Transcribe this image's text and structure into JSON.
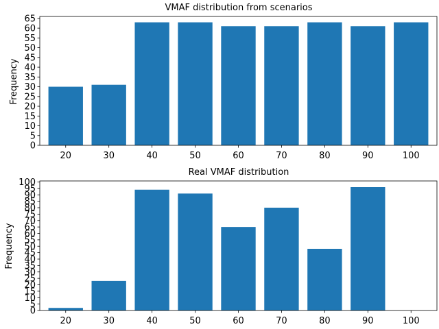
{
  "chart_data": [
    {
      "type": "bar",
      "title": "VMAF distribution from scenarios",
      "xlabel": "",
      "ylabel": "Frequency",
      "categories": [
        "20",
        "30",
        "40",
        "50",
        "60",
        "70",
        "80",
        "90",
        "100"
      ],
      "values": [
        30,
        31,
        63,
        63,
        61,
        61,
        63,
        61,
        63
      ],
      "ylim": [
        0,
        66
      ],
      "yticks": [
        0,
        5,
        10,
        15,
        20,
        25,
        30,
        35,
        40,
        45,
        50,
        55,
        60,
        65
      ],
      "grid": false,
      "bar_color": "#1f77b4"
    },
    {
      "type": "bar",
      "title": "Real VMAF distribution",
      "xlabel": "",
      "ylabel": "Frequency",
      "categories": [
        "20",
        "30",
        "40",
        "50",
        "60",
        "70",
        "80",
        "90",
        "100"
      ],
      "values": [
        2,
        23,
        94,
        91,
        65,
        80,
        48,
        96,
        0
      ],
      "ylim": [
        0,
        100.8
      ],
      "yticks": [
        0,
        5,
        10,
        15,
        20,
        25,
        30,
        35,
        40,
        45,
        50,
        55,
        60,
        65,
        70,
        75,
        80,
        85,
        90,
        95,
        100
      ],
      "grid": false,
      "bar_color": "#1f77b4"
    }
  ]
}
